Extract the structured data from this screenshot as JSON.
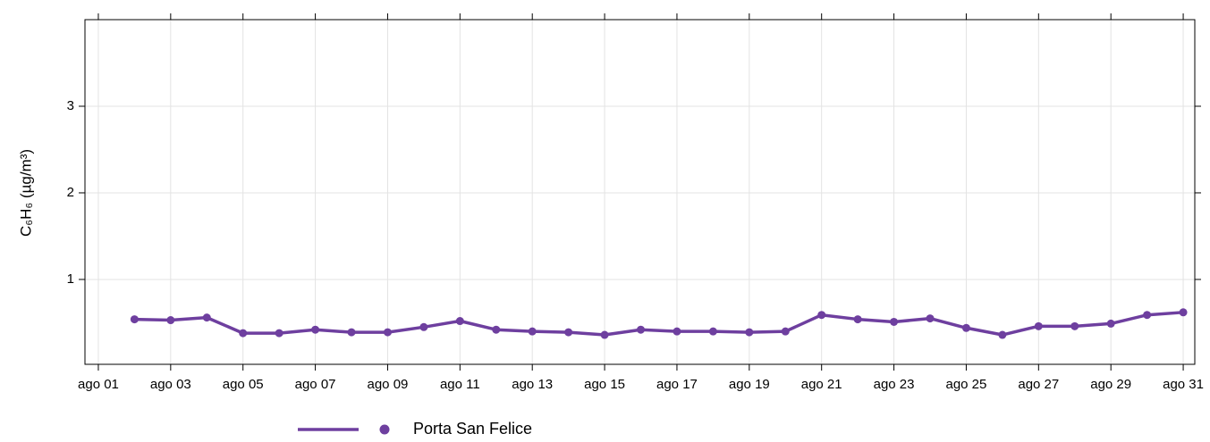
{
  "chart_data": {
    "type": "line",
    "ylabel": "C₆H₆ (µg/m³)",
    "x": [
      2,
      3,
      4,
      5,
      6,
      7,
      8,
      9,
      10,
      11,
      12,
      13,
      14,
      15,
      16,
      17,
      18,
      19,
      20,
      21,
      22,
      23,
      24,
      25,
      26,
      27,
      28,
      29,
      30,
      31
    ],
    "series": [
      {
        "name": "Porta San Felice",
        "color": "#6e3f9f",
        "values": [
          0.54,
          0.53,
          0.56,
          0.38,
          0.38,
          0.42,
          0.39,
          0.39,
          0.45,
          0.52,
          0.42,
          0.4,
          0.39,
          0.36,
          0.42,
          0.4,
          0.4,
          0.39,
          0.4,
          0.59,
          0.54,
          0.51,
          0.55,
          0.44,
          0.36,
          0.46,
          0.46,
          0.49,
          0.59,
          0.62
        ]
      }
    ],
    "xlim": [
      0.63,
      31.32
    ],
    "xticks": [
      {
        "value": 1,
        "label": "ago 01"
      },
      {
        "value": 3,
        "label": "ago 03"
      },
      {
        "value": 5,
        "label": "ago 05"
      },
      {
        "value": 7,
        "label": "ago 07"
      },
      {
        "value": 9,
        "label": "ago 09"
      },
      {
        "value": 11,
        "label": "ago 11"
      },
      {
        "value": 13,
        "label": "ago 13"
      },
      {
        "value": 15,
        "label": "ago 15"
      },
      {
        "value": 17,
        "label": "ago 17"
      },
      {
        "value": 19,
        "label": "ago 19"
      },
      {
        "value": 21,
        "label": "ago 21"
      },
      {
        "value": 23,
        "label": "ago 23"
      },
      {
        "value": 25,
        "label": "ago 25"
      },
      {
        "value": 27,
        "label": "ago 27"
      },
      {
        "value": 29,
        "label": "ago 29"
      },
      {
        "value": 31,
        "label": "ago 31"
      }
    ],
    "ylim": [
      0.02,
      4.0
    ],
    "yticks": [
      1,
      2,
      3
    ],
    "grid": true
  }
}
